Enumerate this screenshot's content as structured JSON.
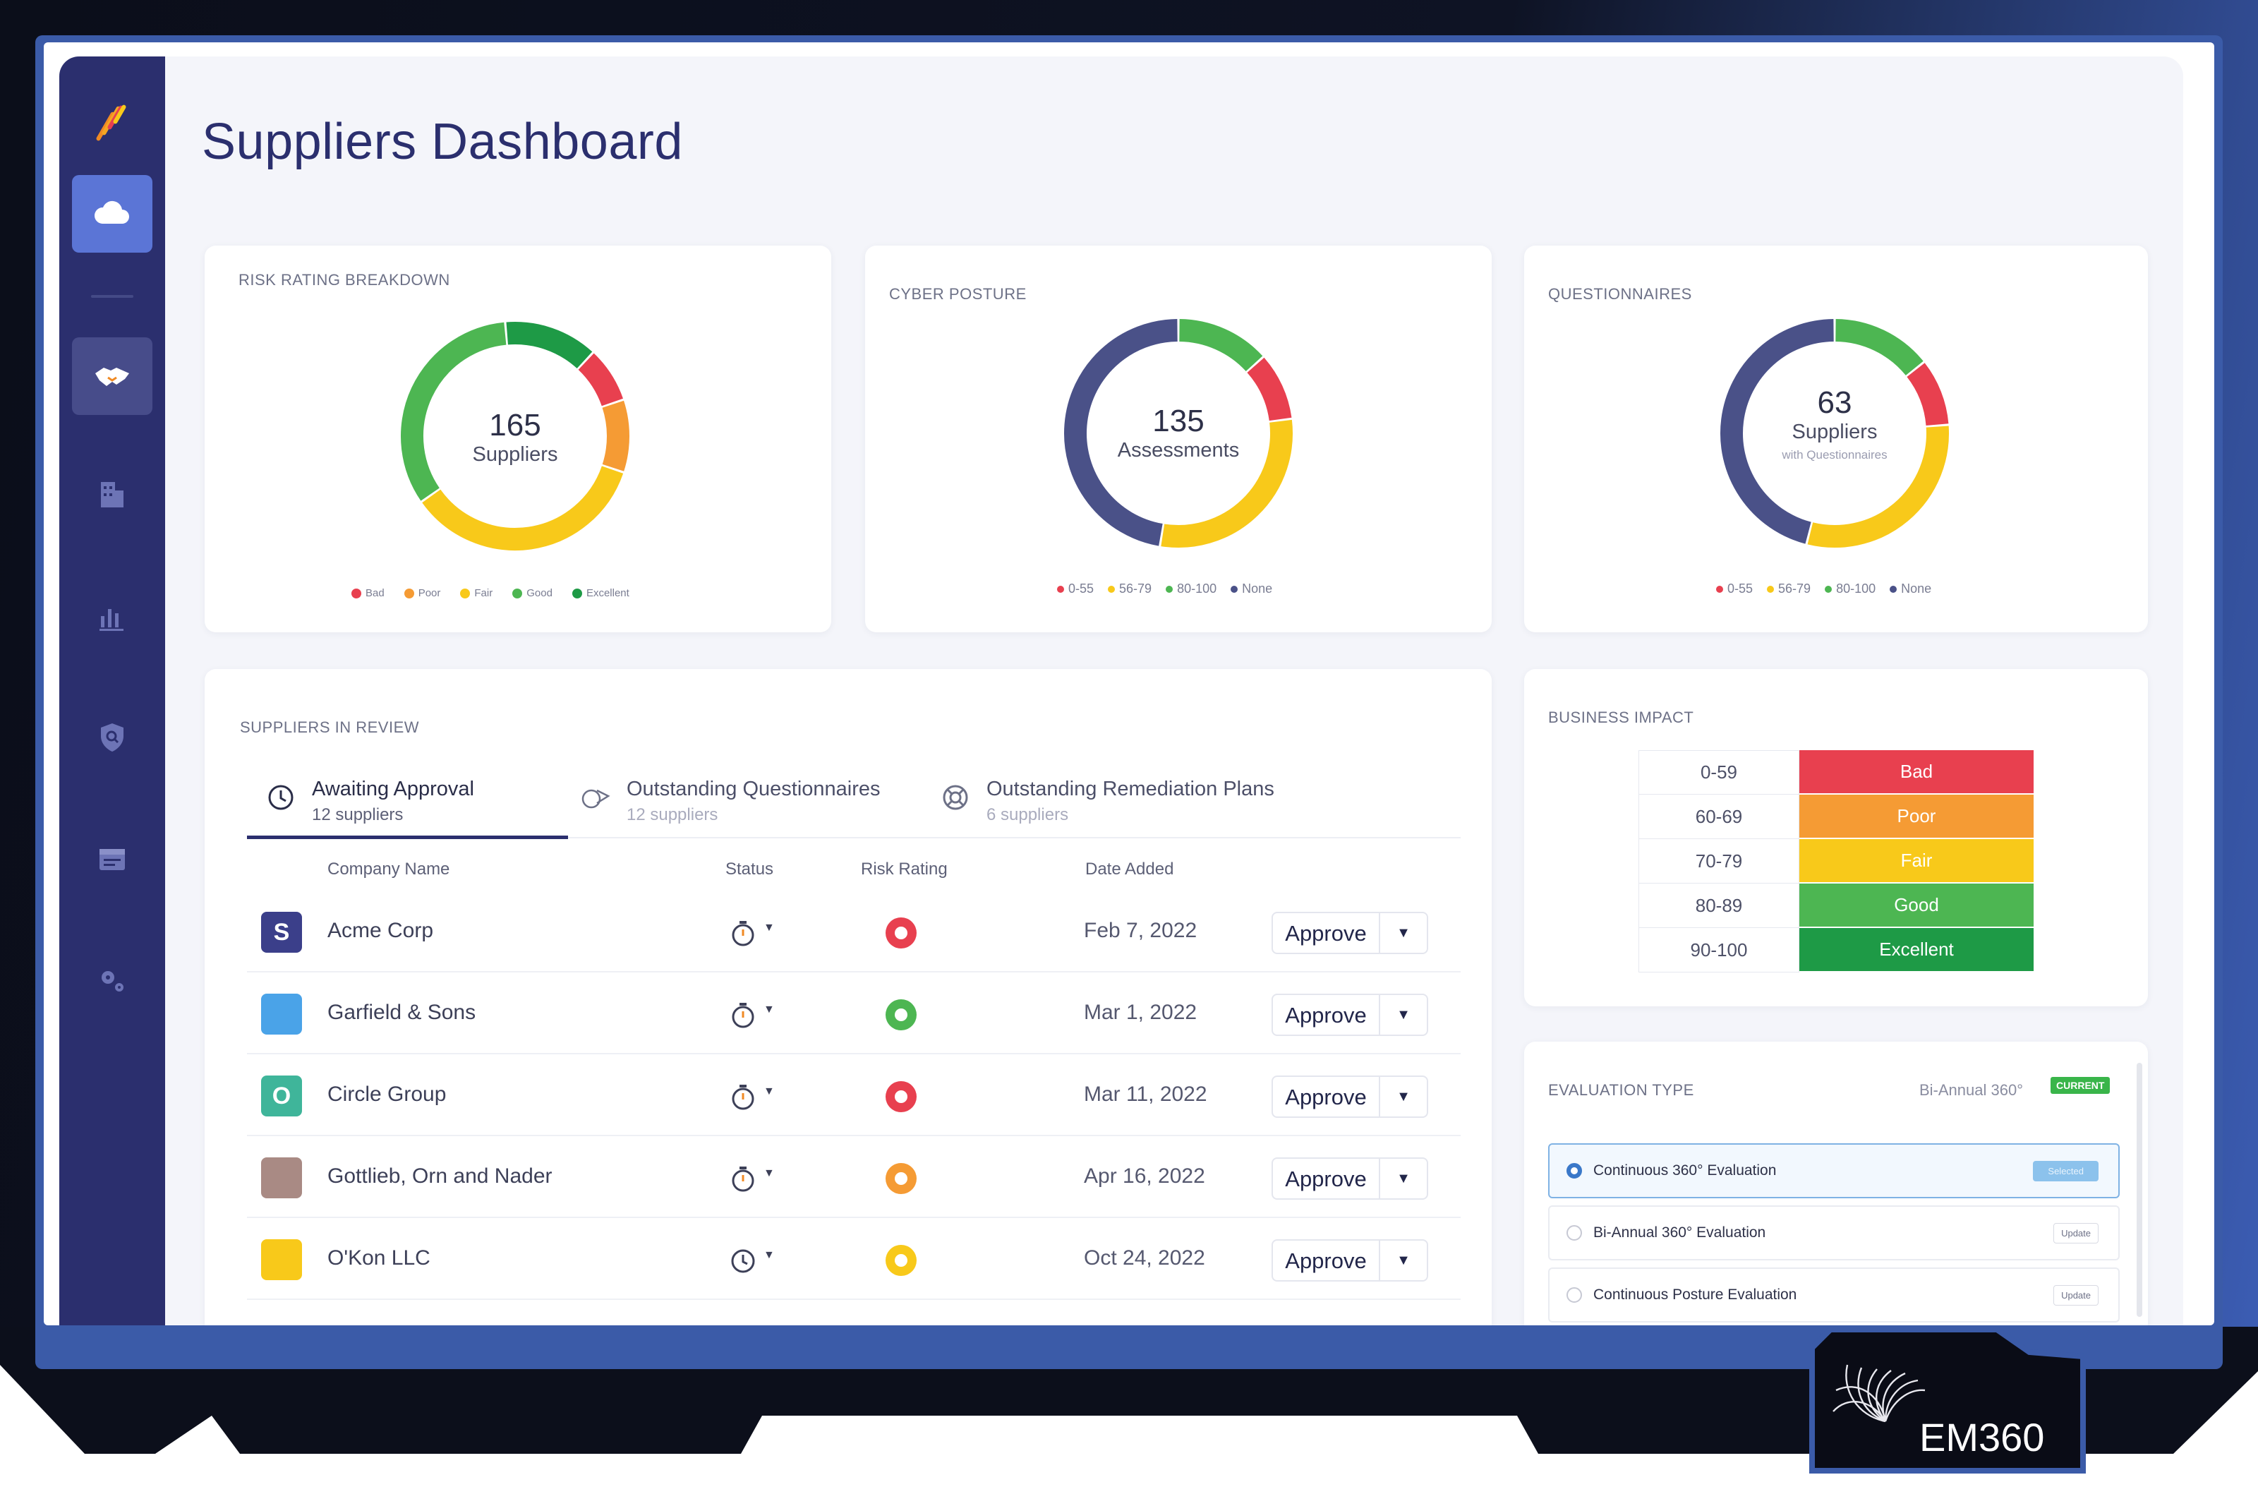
{
  "page": {
    "title": "Suppliers Dashboard"
  },
  "sidebar": {
    "items": [
      {
        "name": "cloud-icon"
      },
      {
        "name": "handshake-icon"
      },
      {
        "name": "building-icon"
      },
      {
        "name": "bar-chart-icon"
      },
      {
        "name": "shield-search-icon"
      },
      {
        "name": "calendar-icon"
      },
      {
        "name": "gears-icon"
      }
    ]
  },
  "risk_card": {
    "label": "RISK RATING BREAKDOWN",
    "count": "165",
    "unit": "Suppliers",
    "legend": [
      "Bad",
      "Poor",
      "Fair",
      "Good",
      "Excellent"
    ]
  },
  "cyber_card": {
    "label": "CYBER POSTURE",
    "count": "135",
    "unit": "Assessments",
    "legend": [
      "0-55",
      "56-79",
      "80-100",
      "None"
    ]
  },
  "quest_card": {
    "label": "QUESTIONNAIRES",
    "count": "63",
    "unit": "Suppliers",
    "sub": "with Questionnaires",
    "legend": [
      "0-55",
      "56-79",
      "80-100",
      "None"
    ]
  },
  "colors": {
    "bad": "#e8404f",
    "poor": "#f59b34",
    "fair": "#f8c91a",
    "good": "#4db652",
    "excellent": "#1e9a46",
    "none": "#4a5188"
  },
  "chart_data": [
    {
      "type": "pie",
      "title": "RISK RATING BREAKDOWN",
      "labels": [
        "Bad",
        "Poor",
        "Fair",
        "Good",
        "Excellent"
      ],
      "values": [
        13,
        17,
        58,
        55,
        22
      ]
    },
    {
      "type": "pie",
      "title": "CYBER POSTURE",
      "labels": [
        "0-55",
        "56-79",
        "80-100",
        "None"
      ],
      "values": [
        13,
        40,
        18,
        64
      ]
    },
    {
      "type": "pie",
      "title": "QUESTIONNAIRES",
      "labels": [
        "0-55",
        "56-79",
        "80-100",
        "None"
      ],
      "values": [
        6,
        19,
        9,
        29
      ]
    }
  ],
  "review": {
    "label": "SUPPLIERS IN REVIEW",
    "tabs": [
      {
        "label": "Awaiting Approval",
        "sub": "12 suppliers"
      },
      {
        "label": "Outstanding Questionnaires",
        "sub": "12 suppliers"
      },
      {
        "label": "Outstanding Remediation Plans",
        "sub": "6 suppliers"
      }
    ],
    "columns": [
      "Company Name",
      "Status",
      "Risk Rating",
      "Date Added"
    ],
    "rows": [
      {
        "letter": "S",
        "name": "Acme Corp",
        "date": "Feb 7, 2022",
        "risk": "bad",
        "color": "#3b3f8a",
        "action": "Approve"
      },
      {
        "letter": "",
        "name": "Garfield & Sons",
        "date": "Mar 1, 2022",
        "risk": "good",
        "color": "#4aa3e8",
        "action": "Approve"
      },
      {
        "letter": "O",
        "name": "Circle Group",
        "date": "Mar 11, 2022",
        "risk": "bad",
        "color": "#3fb59a",
        "action": "Approve"
      },
      {
        "letter": "",
        "name": "Gottlieb, Orn and Nader",
        "date": "Apr 16, 2022",
        "risk": "poor",
        "color": "#a98a84",
        "action": "Approve"
      },
      {
        "letter": "",
        "name": "O'Kon LLC",
        "date": "Oct 24, 2022",
        "risk": "fair",
        "color": "#f8c91a",
        "action": "Approve"
      }
    ]
  },
  "impact": {
    "label": "BUSINESS IMPACT",
    "rows": [
      {
        "range": "0-59",
        "level": "Bad",
        "color": "#e8404f"
      },
      {
        "range": "60-69",
        "level": "Poor",
        "color": "#f59b34"
      },
      {
        "range": "70-79",
        "level": "Fair",
        "color": "#f8c91a"
      },
      {
        "range": "80-89",
        "level": "Good",
        "color": "#4db652"
      },
      {
        "range": "90-100",
        "level": "Excellent",
        "color": "#1e9a46"
      }
    ]
  },
  "evaluation": {
    "label": "EVALUATION TYPE",
    "current_value": "Bi-Annual 360°",
    "current_badge": "CURRENT",
    "options": [
      {
        "label": "Continuous 360° Evaluation",
        "button": "Selected"
      },
      {
        "label": "Bi-Annual 360° Evaluation",
        "button": "Update"
      },
      {
        "label": "Continuous Posture Evaluation",
        "button": "Update"
      }
    ]
  },
  "watermark": {
    "text": "EM360"
  }
}
